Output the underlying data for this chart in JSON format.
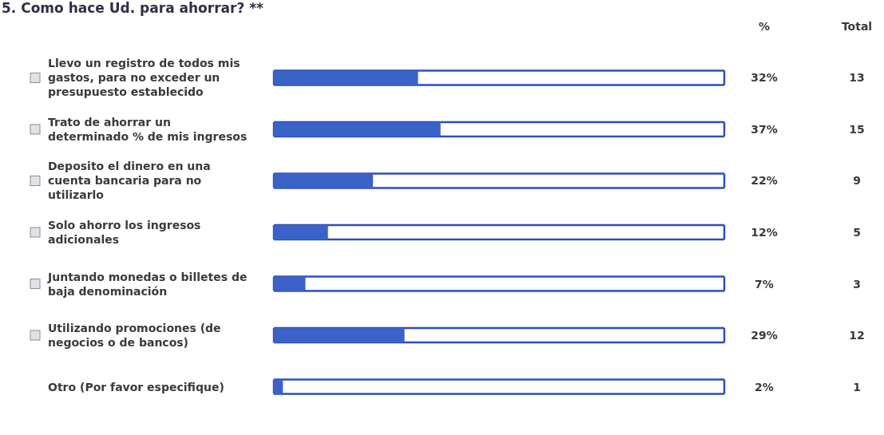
{
  "chart_data": {
    "type": "bar",
    "orientation": "horizontal",
    "title": "5. Como hace Ud. para ahorrar? **",
    "categories": [
      "Llevo un registro de todos mis gastos, para no exceder un presupuesto establecido",
      "Trato de ahorrar un determinado % de mis ingresos",
      "Deposito el dinero en una cuenta bancaria para no utilizarlo",
      "Solo ahorro los ingresos adicionales",
      "Juntando monedas o billetes de baja denominación",
      "Utilizando promociones (de negocios o de bancos)",
      "Otro (Por favor especifique)"
    ],
    "values": [
      32,
      37,
      22,
      12,
      7,
      29,
      2
    ],
    "color": "#3a62c8",
    "value_labels": [
      "32%",
      "37%",
      "22%",
      "12%",
      "7%",
      "29%",
      "2%"
    ],
    "xlim": [
      0,
      100
    ],
    "tick_labels": "y",
    "annotations": [
      "%",
      "Total",
      "13",
      "15",
      "9",
      "5",
      "3",
      "12",
      "1"
    ]
  }
}
